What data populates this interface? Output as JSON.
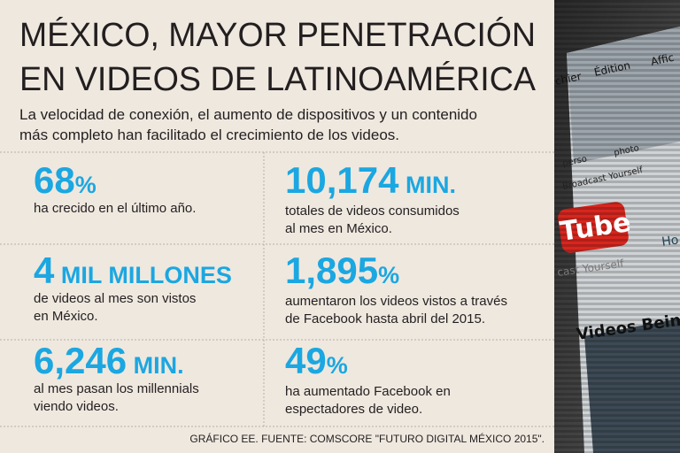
{
  "header": {
    "title_lines": [
      "MÉXICO, MAYOR PENETRACIÓN",
      "EN VIDEOS DE LATINOAMÉRICA"
    ],
    "subtitle_lines": [
      "La velocidad de conexión, el aumento de dispositivos y un contenido",
      "más completo han facilitado el crecimiento de los videos."
    ]
  },
  "stats": [
    {
      "number": "68",
      "unit": "%",
      "text": [
        "ha crecido en el último año."
      ]
    },
    {
      "number": "10,174",
      "unit": " MIN.",
      "text": [
        "totales de videos consumidos",
        "al mes en México."
      ]
    },
    {
      "number": "4",
      "unit": " MIL MILLONES",
      "text": [
        "de videos al mes son vistos",
        "en México."
      ]
    },
    {
      "number": "1,895",
      "unit": "%",
      "text": [
        "aumentaron los videos vistos a través",
        "de Facebook hasta abril del 2015."
      ]
    },
    {
      "number": "6,246",
      "unit": " MIN.",
      "text": [
        "al mes pasan los millennials",
        "viendo videos."
      ]
    },
    {
      "number": "49",
      "unit": "%",
      "text": [
        "ha aumentado Facebook en",
        "espectadores de video."
      ]
    }
  ],
  "footer": {
    "source": "GRÁFICO EE. FUENTE: COMSCORE \"FUTURO DIGITAL MÉXICO 2015\"."
  },
  "photo": {
    "menu": [
      "chier",
      "Édition",
      "Affic"
    ],
    "bookmarks": [
      "perso",
      "photo",
      "Broadcast Yourself"
    ],
    "logo": "Tube",
    "slogan": "cast Yourself",
    "heading": "Videos Bein",
    "link": "Ho"
  }
}
